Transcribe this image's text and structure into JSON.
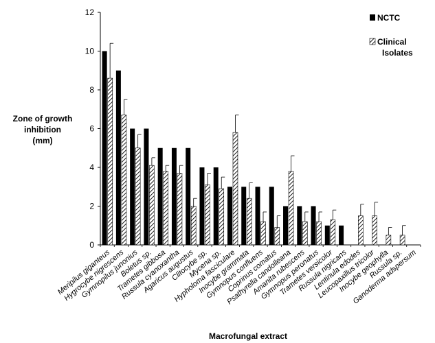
{
  "chart_data": {
    "type": "bar",
    "xlabel": "Macrofungal extract",
    "ylabel_lines": [
      "Zone of growth",
      "inhibition",
      "(mm)"
    ],
    "ylim": [
      0,
      12
    ],
    "yticks": [
      0,
      2,
      4,
      6,
      8,
      10,
      12
    ],
    "grid": false,
    "legend_placement": "top-right",
    "categories": [
      "Meripilus giganteus",
      "Hygrocybe nigrescens",
      "Gymnopilus junonius",
      "Boletus sp.",
      "Trametes gibbosa",
      "Russula cyanoxantha",
      "Agaricus augustus",
      "Clitocybe sp.",
      "Mycena sp.",
      "Hypholoma fasciculare",
      "Inocybe grammata",
      "Gymnopus confluens",
      "Coprinus comatus",
      "Psathyrella candolleana",
      "Amanita rubescens",
      "Gymnopus peronatus",
      "Trametes versicolor",
      "Russula nigricans",
      "Lentinula edodes",
      "Leucopaxillus tricolor",
      "Inocybe geophylla",
      "Russula sp.",
      "Ganoderma adspersum"
    ],
    "series": [
      {
        "name": "NCTC",
        "color": "#000000",
        "pattern": "solid",
        "values": [
          10,
          9,
          6,
          6,
          5,
          5,
          5,
          4,
          4,
          3,
          3,
          3,
          3,
          2,
          2,
          2,
          1,
          1,
          0,
          0,
          0,
          0,
          0
        ],
        "errors": [
          0,
          0,
          0,
          0,
          0,
          0,
          0,
          0,
          0,
          0,
          0,
          0,
          0,
          0,
          0,
          0,
          0,
          0,
          0,
          0,
          0,
          0,
          0
        ]
      },
      {
        "name_lines": [
          "Clinical",
          "Isolates"
        ],
        "color": "#000000",
        "pattern": "hatched",
        "values": [
          8.6,
          6.7,
          5.0,
          4.1,
          3.8,
          3.7,
          2.0,
          3.1,
          2.9,
          5.8,
          2.4,
          1.2,
          0.9,
          3.8,
          1.2,
          1.2,
          1.3,
          0,
          1.5,
          1.5,
          0.5,
          0.5,
          0
        ],
        "errors": [
          1.8,
          0.8,
          0.7,
          0.4,
          0.3,
          0.4,
          0.4,
          0.6,
          0.6,
          0.9,
          0.8,
          0.5,
          0.6,
          0.8,
          0.5,
          0.5,
          0.5,
          0,
          0.6,
          0.7,
          0.4,
          0.5,
          0
        ]
      }
    ]
  }
}
